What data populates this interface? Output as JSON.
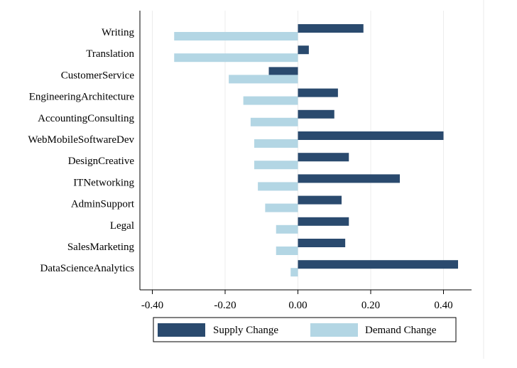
{
  "chart_data": {
    "type": "bar",
    "orientation": "horizontal",
    "categories": [
      "Writing",
      "Translation",
      "CustomerService",
      "EngineeringArchitecture",
      "AccountingConsulting",
      "WebMobileSoftwareDev",
      "DesignCreative",
      "ITNetworking",
      "AdminSupport",
      "Legal",
      "SalesMarketing",
      "DataScienceAnalytics"
    ],
    "series": [
      {
        "name": "Supply Change",
        "color": "#2a4a6e",
        "values": [
          0.18,
          0.03,
          -0.08,
          0.11,
          0.1,
          0.4,
          0.14,
          0.28,
          0.12,
          0.14,
          0.13,
          0.44
        ]
      },
      {
        "name": "Demand Change",
        "color": "#b3d6e4",
        "values": [
          -0.34,
          -0.34,
          -0.19,
          -0.15,
          -0.13,
          -0.12,
          -0.12,
          -0.11,
          -0.09,
          -0.06,
          -0.06,
          -0.02
        ]
      }
    ],
    "xlim": [
      -0.42,
      0.47
    ],
    "xticks": [
      -0.4,
      -0.2,
      0.0,
      0.2,
      0.4
    ],
    "xtick_labels": [
      "-0.40",
      "-0.20",
      "0.00",
      "0.20",
      "0.40"
    ],
    "grid": true,
    "legend_position": "bottom",
    "title": "",
    "xlabel": "",
    "ylabel": ""
  }
}
